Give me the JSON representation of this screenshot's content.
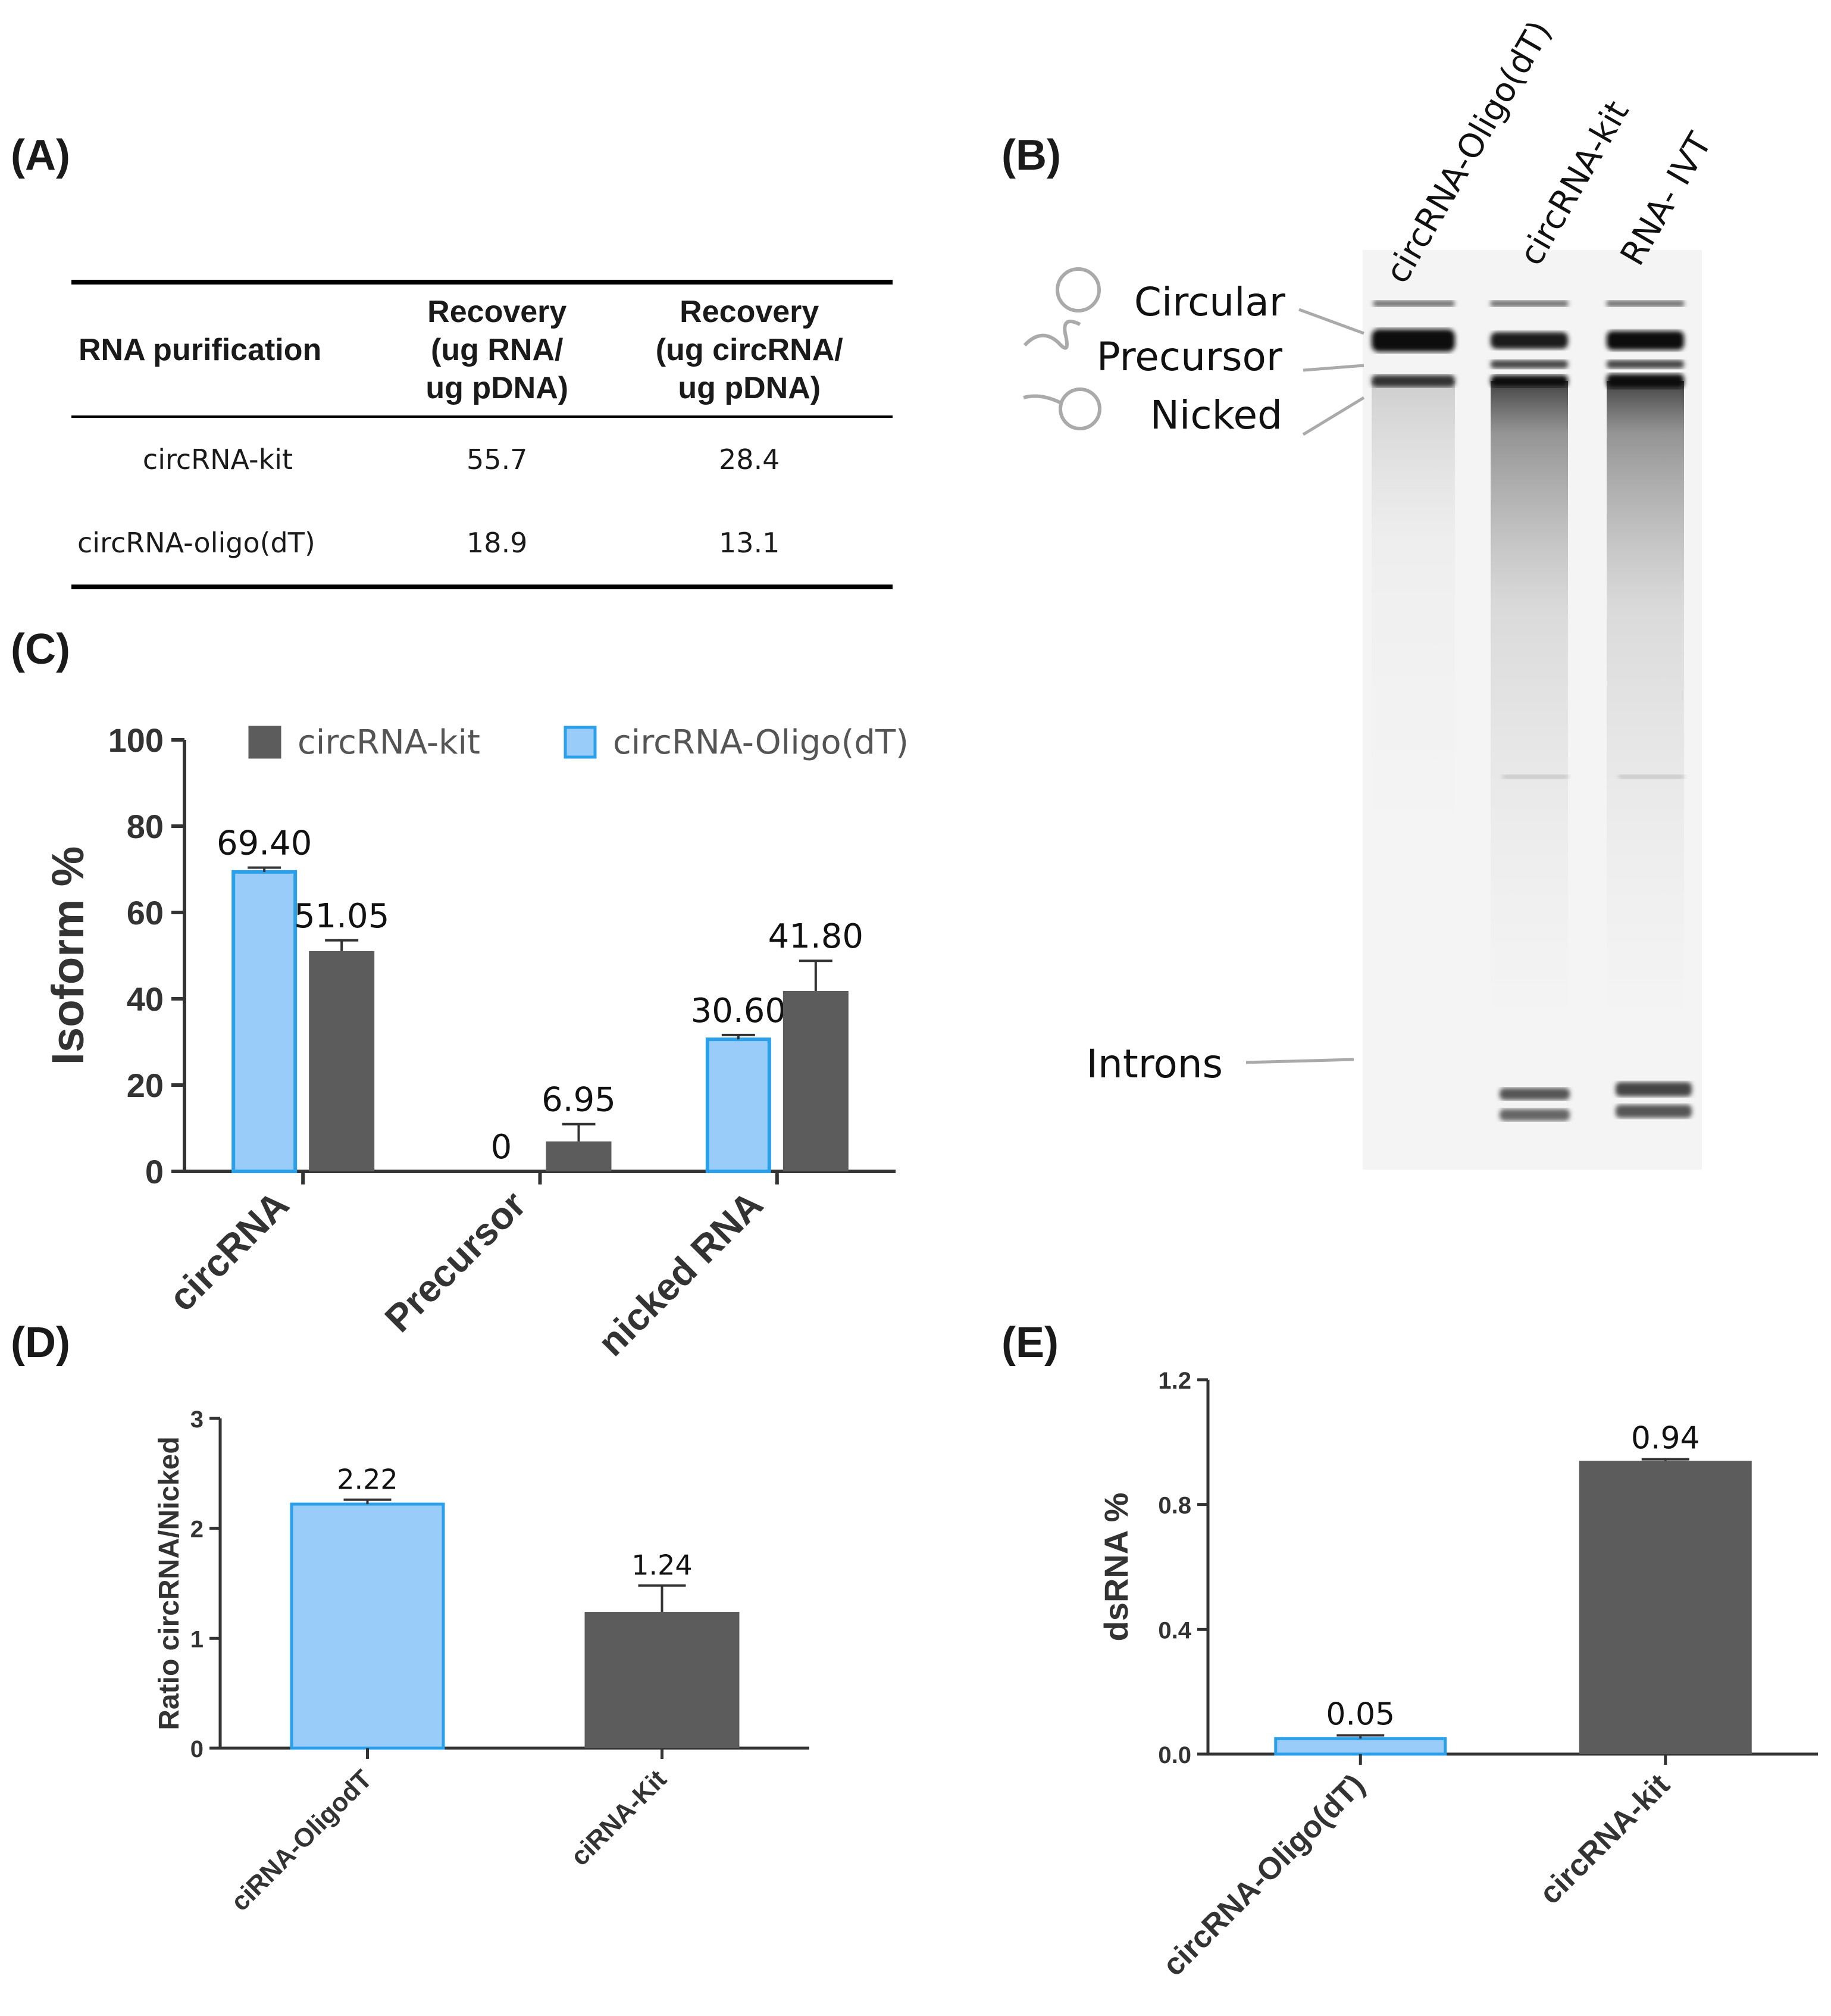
{
  "panels": {
    "A": {
      "letter": "(A)",
      "headers": [
        "RNA purification",
        "Recovery (ug RNA/ ug pDNA)",
        "Recovery (ug circRNA/ ug pDNA)"
      ],
      "header_lines": [
        [
          "RNA purification"
        ],
        [
          "Recovery",
          "(ug RNA/",
          "ug pDNA)"
        ],
        [
          "Recovery",
          "(ug circRNA/",
          "ug pDNA)"
        ]
      ],
      "rows": [
        {
          "name": "circRNA-kit",
          "rna": "55.7",
          "circrna": "28.4"
        },
        {
          "name": "circRNA-oligo(dT)",
          "rna": "18.9",
          "circrna": "13.1"
        }
      ]
    },
    "B": {
      "letter": "(B)",
      "lanes": [
        "circRNA-Oligo(dT)",
        "circRNA-kit",
        "RNA- IVT"
      ],
      "band_labels": [
        "Circular",
        "Precursor",
        "Nicked",
        "Introns"
      ]
    },
    "C": {
      "letter": "(C)"
    },
    "D": {
      "letter": "(D)"
    },
    "E": {
      "letter": "(E)"
    }
  },
  "colors": {
    "light_blue": "#99ccf9",
    "blue_edge": "#2aa0ea",
    "dark_gray": "#5c5c5c",
    "axis": "#333333"
  },
  "chart_data": [
    {
      "id": "C",
      "type": "bar",
      "title": "",
      "ylabel": "Isoform %",
      "xlabel": "",
      "ylim": [
        0,
        100
      ],
      "yticks": [
        0,
        20,
        40,
        60,
        80,
        100
      ],
      "categories": [
        "circRNA",
        "Precursor",
        "nicked RNA"
      ],
      "legend": [
        "circRNA-kit",
        "circRNA-Oligo(dT)"
      ],
      "legend_position": "top",
      "series": [
        {
          "name": "circRNA-Oligo(dT)",
          "values": [
            69.4,
            0,
            30.6
          ],
          "errors": [
            1.0,
            0,
            1.0
          ],
          "labels": [
            "69.40",
            "0",
            "30.60"
          ],
          "color": "#99ccf9",
          "edge": "#2aa0ea"
        },
        {
          "name": "circRNA-kit",
          "values": [
            51.05,
            6.95,
            41.8
          ],
          "errors": [
            2.5,
            4.0,
            7.0
          ],
          "labels": [
            "51.05",
            "6.95",
            "41.80"
          ],
          "color": "#5c5c5c",
          "edge": "#5c5c5c"
        }
      ]
    },
    {
      "id": "D",
      "type": "bar",
      "title": "",
      "ylabel": "Ratio circRNA/Nicked",
      "xlabel": "",
      "ylim": [
        0,
        3
      ],
      "yticks": [
        0,
        1,
        2,
        3
      ],
      "categories": [
        "ciRNA-OligodT",
        "ciRNA-Kit"
      ],
      "values": [
        2.22,
        1.24
      ],
      "errors": [
        0.04,
        0.24
      ],
      "labels": [
        "2.22",
        "1.24"
      ],
      "colors": [
        "#99ccf9",
        "#5c5c5c"
      ],
      "edges": [
        "#2aa0ea",
        "#5c5c5c"
      ]
    },
    {
      "id": "E",
      "type": "bar",
      "title": "",
      "ylabel": "dsRNA %",
      "xlabel": "",
      "ylim": [
        0,
        1.2
      ],
      "yticks": [
        "0.0",
        "0.4",
        "0.8",
        "1.2"
      ],
      "categories": [
        "circRNA-Oligo(dT)",
        "circRNA-kit"
      ],
      "values": [
        0.05,
        0.94
      ],
      "errors": [
        0.01,
        0.005
      ],
      "labels": [
        "0.05",
        "0.94"
      ],
      "colors": [
        "#99ccf9",
        "#5c5c5c"
      ],
      "edges": [
        "#2aa0ea",
        "#5c5c5c"
      ]
    }
  ]
}
